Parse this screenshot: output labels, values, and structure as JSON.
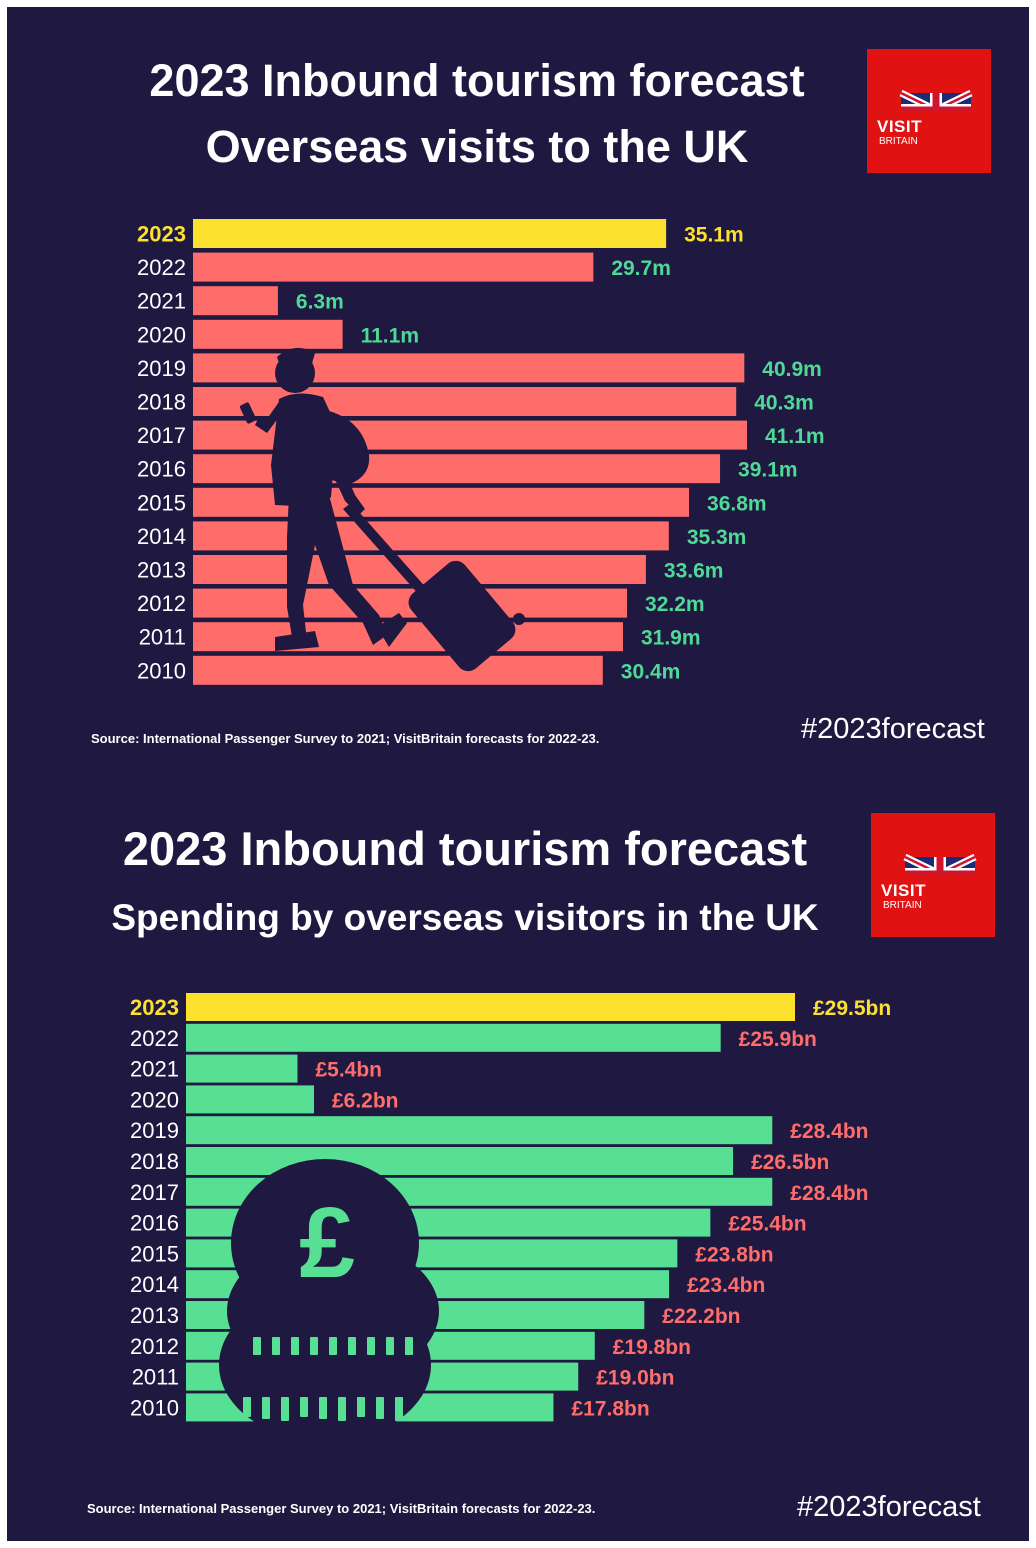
{
  "visits": {
    "title_line1": "2023 Inbound tourism forecast",
    "title_line2": "Overseas visits to the UK",
    "logo": {
      "visit": "VISIT",
      "britain": "BRITAIN"
    },
    "source": "Source: International Passenger Survey to 2021; VisitBritain forecasts for 2022-23.",
    "hashtag": "#2023forecast",
    "illustration": "traveller-with-suitcase-icon"
  },
  "spending": {
    "title_line1": "2023 Inbound tourism forecast",
    "title_line2": "Spending by overseas visitors in the UK",
    "logo": {
      "visit": "VISIT",
      "britain": "BRITAIN"
    },
    "source": "Source: International Passenger Survey to 2021; VisitBritain forecasts for 2022-23.",
    "hashtag": "#2023forecast",
    "illustration": "pound-coins-icon"
  },
  "colors": {
    "background": "#1f1840",
    "highlight": "#fbe12e",
    "visits_bar": "#ff6d6a",
    "visits_label": "#4fd996",
    "spending_bar": "#57df94",
    "spending_label": "#ff6d6a",
    "logo_red": "#e01212"
  },
  "chart_data": [
    {
      "type": "bar",
      "orientation": "horizontal",
      "categories": [
        "2023",
        "2022",
        "2021",
        "2020",
        "2019",
        "2018",
        "2017",
        "2016",
        "2015",
        "2014",
        "2013",
        "2012",
        "2011",
        "2010"
      ],
      "values": [
        35.1,
        29.7,
        6.3,
        11.1,
        40.9,
        40.3,
        41.1,
        39.1,
        36.8,
        35.3,
        33.6,
        32.2,
        31.9,
        30.4
      ],
      "labels": [
        "35.1m",
        "29.7m",
        "6.3m",
        "11.1m",
        "40.9m",
        "40.3m",
        "41.1m",
        "39.1m",
        "36.8m",
        "35.3m",
        "33.6m",
        "32.2m",
        "31.9m",
        "30.4m"
      ],
      "highlight_index": 0,
      "xlim": [
        0,
        41.1
      ]
    },
    {
      "type": "bar",
      "orientation": "horizontal",
      "categories": [
        "2023",
        "2022",
        "2021",
        "2020",
        "2019",
        "2018",
        "2017",
        "2016",
        "2015",
        "2014",
        "2013",
        "2012",
        "2011",
        "2010"
      ],
      "values": [
        29.5,
        25.9,
        5.4,
        6.2,
        28.4,
        26.5,
        28.4,
        25.4,
        23.8,
        23.4,
        22.2,
        19.8,
        19.0,
        17.8
      ],
      "labels": [
        "£29.5bn",
        "£25.9bn",
        "£5.4bn",
        "£6.2bn",
        "£28.4bn",
        "£26.5bn",
        "£28.4bn",
        "£25.4bn",
        "£23.8bn",
        "£23.4bn",
        "£22.2bn",
        "£19.8bn",
        "£19.0bn",
        "£17.8bn"
      ],
      "highlight_index": 0,
      "xlim": [
        0,
        29.5
      ]
    }
  ]
}
